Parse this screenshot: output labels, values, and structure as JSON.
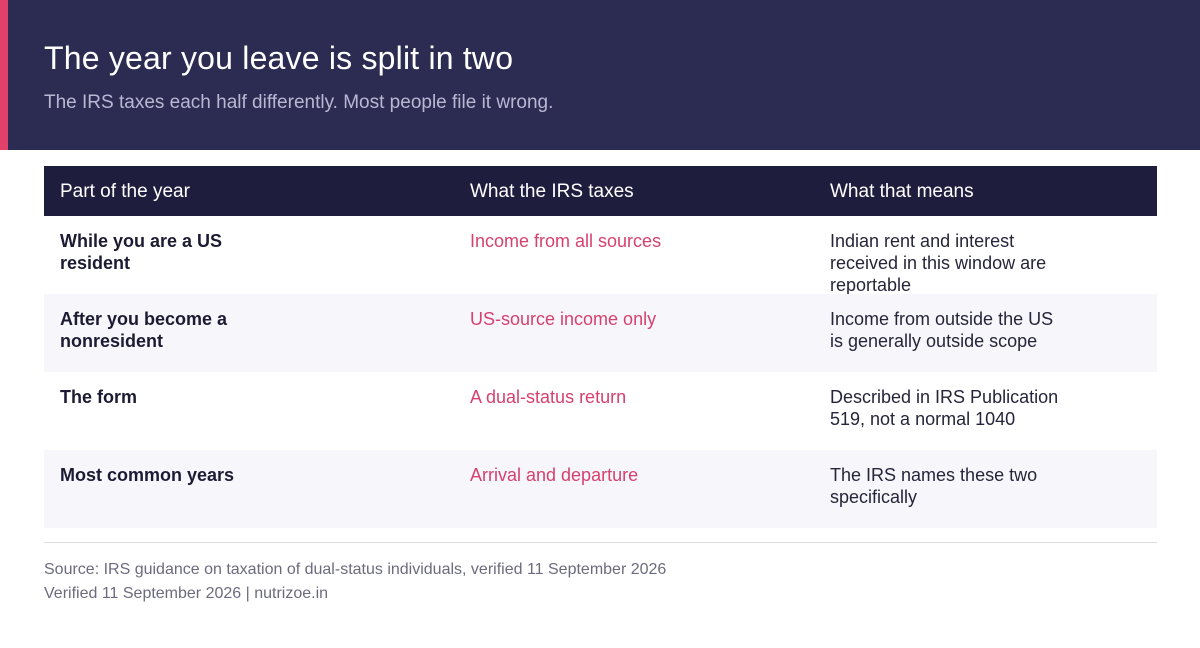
{
  "header": {
    "title": "The year you leave is split in two",
    "subtitle": "The IRS taxes each half differently. Most people file it wrong."
  },
  "table": {
    "columns": [
      "Part of the year",
      "What the IRS taxes",
      "What that means"
    ],
    "rows": [
      [
        "While you are a US resident",
        "Income from all sources",
        "Indian rent and interest received in this window are reportable"
      ],
      [
        "After you become a nonresident",
        "US-source income only",
        "Income from outside the US is generally outside scope"
      ],
      [
        "The form",
        "A dual-status return",
        "Described in IRS Publication 519, not a normal 1040"
      ],
      [
        "Most common years",
        "Arrival and departure",
        "The IRS names these two specifically"
      ]
    ]
  },
  "footer": {
    "source": "Source: IRS guidance on taxation of dual-status individuals, verified 11 September 2026",
    "verified": "Verified 11 September 2026  |  nutrizoe.in"
  },
  "colors": {
    "header_bg": "#2c2b52",
    "accent": "#e0406a",
    "table_head_bg": "#1f1d3d",
    "highlight_text": "#d6416e"
  }
}
